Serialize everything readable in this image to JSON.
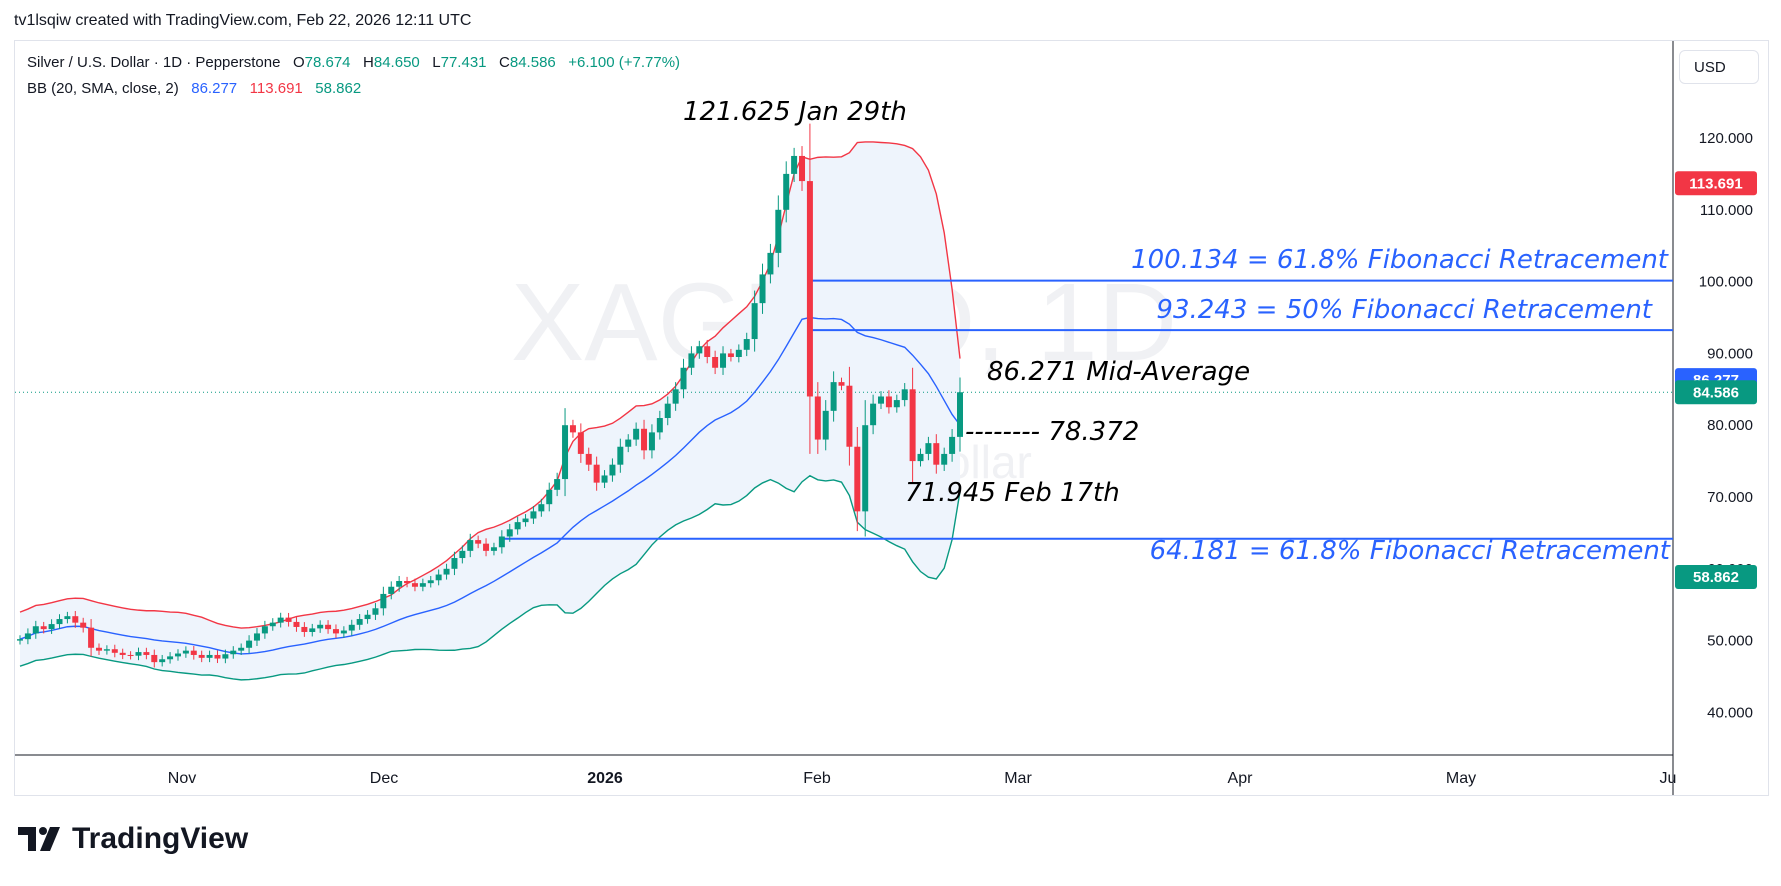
{
  "header": {
    "created_text": "tv1lsqiw created with TradingView.com, Feb 22, 2026 12:11 UTC"
  },
  "legend": {
    "symbol": "Silver / U.S. Dollar · 1D · Pepperstone",
    "o_label": "O",
    "o_value": "78.674",
    "h_label": "H",
    "h_value": "84.650",
    "l_label": "L",
    "l_value": "77.431",
    "c_label": "C",
    "c_value": "84.586",
    "change": "+6.100 (+7.77%)",
    "bb_label": "BB (20, SMA, close, 2)",
    "bb_basis": "86.277",
    "bb_upper": "113.691",
    "bb_lower": "58.862"
  },
  "currency": "USD",
  "watermark": {
    "symbol": "XAGUSD, 1D",
    "name": "Silver / U.S. Dollar"
  },
  "brand": "TradingView",
  "colors": {
    "up": "#089981",
    "down": "#f23645",
    "basis": "#2962ff",
    "upper": "#f23645",
    "lower": "#089981",
    "fib": "#2962ff",
    "band_fill": "#eef4fc"
  },
  "chart_data": {
    "type": "candlestick",
    "x_ticks": [
      "Nov",
      "Dec",
      "2026",
      "Feb",
      "Mar",
      "Apr",
      "May",
      "Ju"
    ],
    "y_ticks": [
      "40.000",
      "50.000",
      "60.000",
      "70.000",
      "80.000",
      "90.000",
      "100.000",
      "110.000",
      "120.000"
    ],
    "ylim": [
      33,
      130
    ],
    "price_badges": [
      {
        "value": "113.691",
        "price": 113.691,
        "color": "#f23645"
      },
      {
        "value": "86.277",
        "price": 86.277,
        "color": "#2962ff"
      },
      {
        "value": "84.586",
        "price": 84.586,
        "color": "#089981"
      },
      {
        "value": "58.862",
        "price": 58.862,
        "color": "#089981"
      }
    ],
    "last_price": 84.586,
    "fib_levels": [
      {
        "price": 100.134,
        "label": "100.134 = 61.8% Fibonacci Retracement"
      },
      {
        "price": 93.243,
        "label": "93.243 = 50% Fibonacci Retracement"
      },
      {
        "price": 64.181,
        "label": "64.181 = 61.8% Fibonacci Retracement"
      }
    ],
    "annotations": [
      {
        "text": "121.625 Jan 29th"
      },
      {
        "text": "86.271 Mid-Average"
      },
      {
        "text": "-------- 78.372"
      },
      {
        "text": "71.945 Feb 17th"
      }
    ],
    "closes": [
      50.2,
      51.0,
      52.0,
      51.6,
      52.3,
      53.0,
      53.4,
      52.5,
      51.8,
      49.0,
      48.6,
      48.8,
      48.3,
      48.0,
      47.9,
      48.4,
      48.0,
      47.0,
      47.4,
      47.8,
      48.2,
      48.6,
      48.0,
      47.6,
      48.0,
      47.5,
      48.1,
      48.6,
      49.0,
      50.0,
      51.0,
      52.0,
      52.5,
      53.2,
      52.6,
      51.9,
      51.2,
      51.7,
      52.2,
      51.6,
      51.0,
      51.4,
      52.2,
      53.0,
      53.6,
      54.5,
      56.5,
      57.5,
      58.3,
      58.0,
      57.5,
      58.0,
      58.4,
      59.2,
      60.0,
      61.5,
      62.5,
      64.0,
      63.5,
      62.5,
      63.0,
      64.5,
      65.5,
      66.5,
      67.0,
      68.0,
      69.0,
      71.0,
      72.5,
      80.0,
      79.0,
      76.0,
      74.5,
      72.0,
      73.0,
      74.5,
      77.0,
      78.0,
      79.5,
      76.5,
      79.0,
      81.0,
      83.0,
      85.0,
      88.0,
      90.0,
      91.0,
      89.5,
      88.0,
      90.0,
      89.5,
      90.5,
      92.0,
      97.0,
      101.0,
      104.0,
      110.0,
      115.0,
      117.5,
      114.0,
      84.0,
      78.0,
      82.0,
      86.0,
      85.5,
      77.0,
      68.0,
      80.0,
      83.0,
      84.0,
      82.5,
      83.5,
      85.0,
      75.0,
      76.0,
      77.5,
      74.5,
      76.0,
      78.372,
      84.586
    ],
    "open_price": 50.0
  }
}
